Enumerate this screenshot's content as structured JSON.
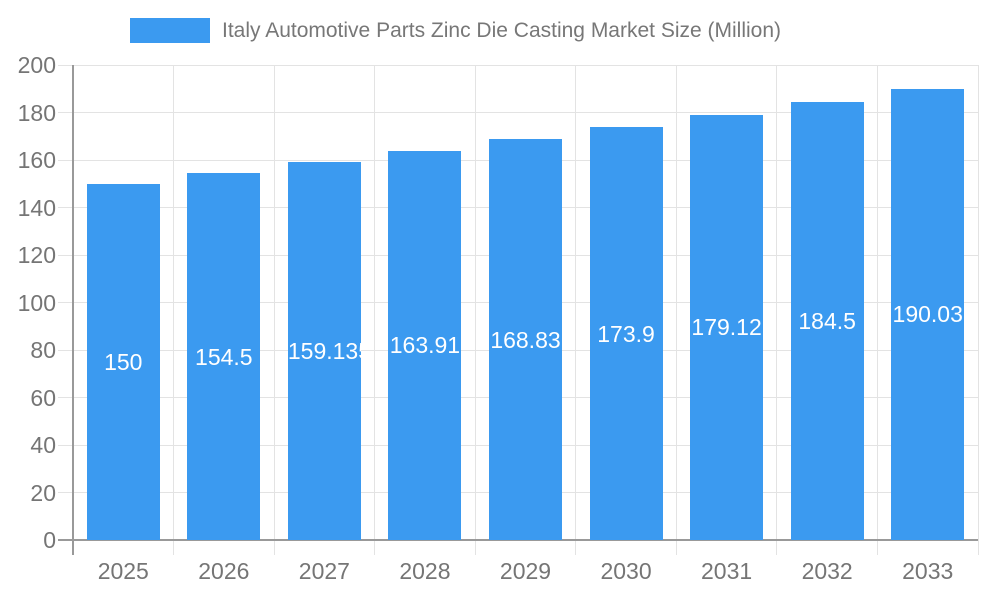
{
  "chart_data": {
    "type": "bar",
    "title": "Italy Automotive Parts Zinc Die Casting Market Size (Million)",
    "categories": [
      "2025",
      "2026",
      "2027",
      "2028",
      "2029",
      "2030",
      "2031",
      "2032",
      "2033"
    ],
    "values": [
      150,
      154.5,
      159.135,
      163.91,
      168.83,
      173.9,
      179.12,
      184.5,
      190.03
    ],
    "bar_labels": [
      "150",
      "154.5",
      "159.135",
      "163.91",
      "168.83",
      "173.9",
      "179.12",
      "184.5",
      "190.03"
    ],
    "xlabel": "",
    "ylabel": "",
    "ylim": [
      0,
      200
    ],
    "ytick_interval": 20,
    "yticks": [
      0,
      20,
      40,
      60,
      80,
      100,
      120,
      140,
      160,
      180,
      200
    ],
    "grid": true,
    "legend_position": "top",
    "legend_entries": [
      "Italy Automotive Parts Zinc Die Casting Market Size (Million)"
    ],
    "colors": {
      "bar": "#3B9AF0",
      "grid": "#E3E3E3",
      "axis": "#999999",
      "tick_label": "#757575",
      "title": "#777777",
      "bar_label": "#FFFFFF",
      "background": "#FFFFFF"
    }
  }
}
